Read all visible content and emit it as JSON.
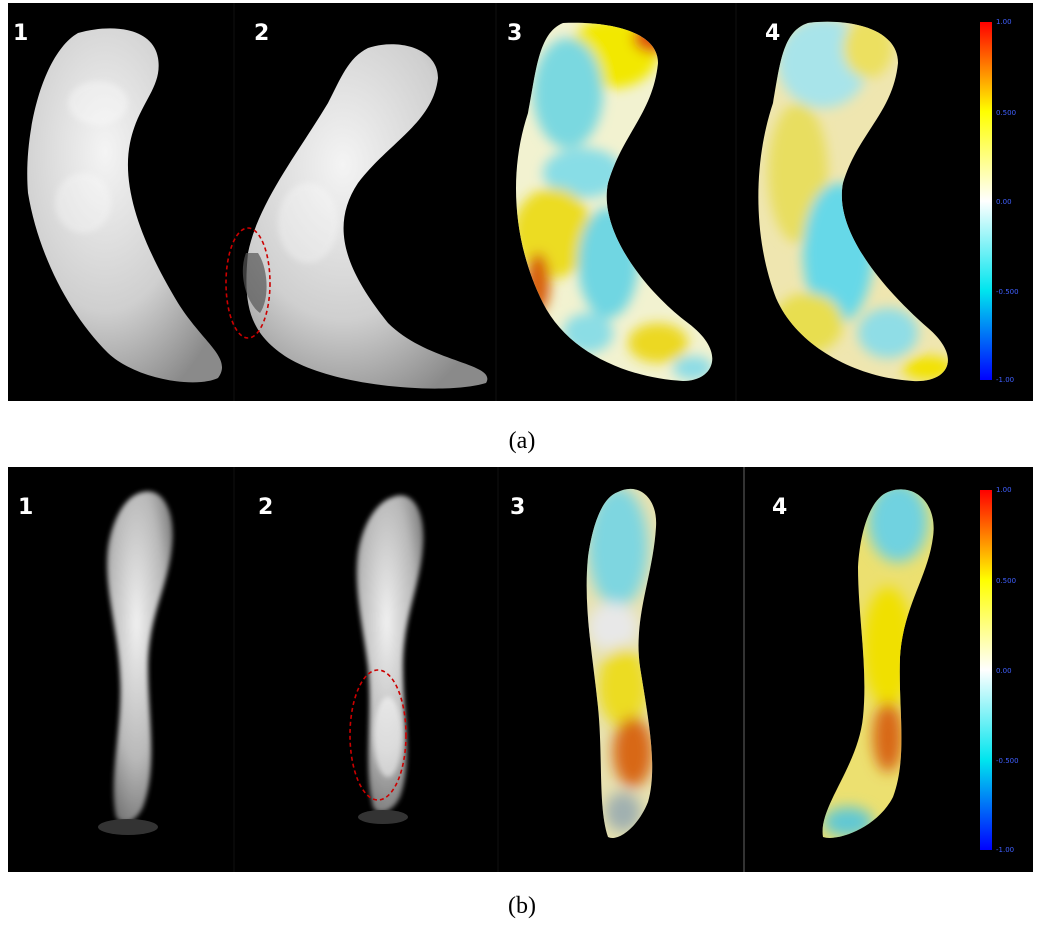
{
  "panels": [
    {
      "caption": "(a)",
      "view_numbers": [
        "1",
        "2",
        "3",
        "4"
      ],
      "colorbar": {
        "max": "1.00",
        "upper": "0.500",
        "mid": "0.00",
        "lower": "-0.500",
        "min": "-1.00"
      }
    },
    {
      "caption": "(b)",
      "view_numbers": [
        "1",
        "2",
        "3",
        "4"
      ],
      "colorbar": {
        "max": "1.00",
        "upper": "0.500",
        "mid": "0.00",
        "lower": "-0.500",
        "min": "-1.00"
      }
    }
  ],
  "colorscale": {
    "min_color": "#0000ff",
    "low_color": "#00e5ee",
    "mid_color": "#ffffff",
    "high_color": "#ffff00",
    "max_color": "#ff0000"
  },
  "highlight_color": "#cc0000"
}
